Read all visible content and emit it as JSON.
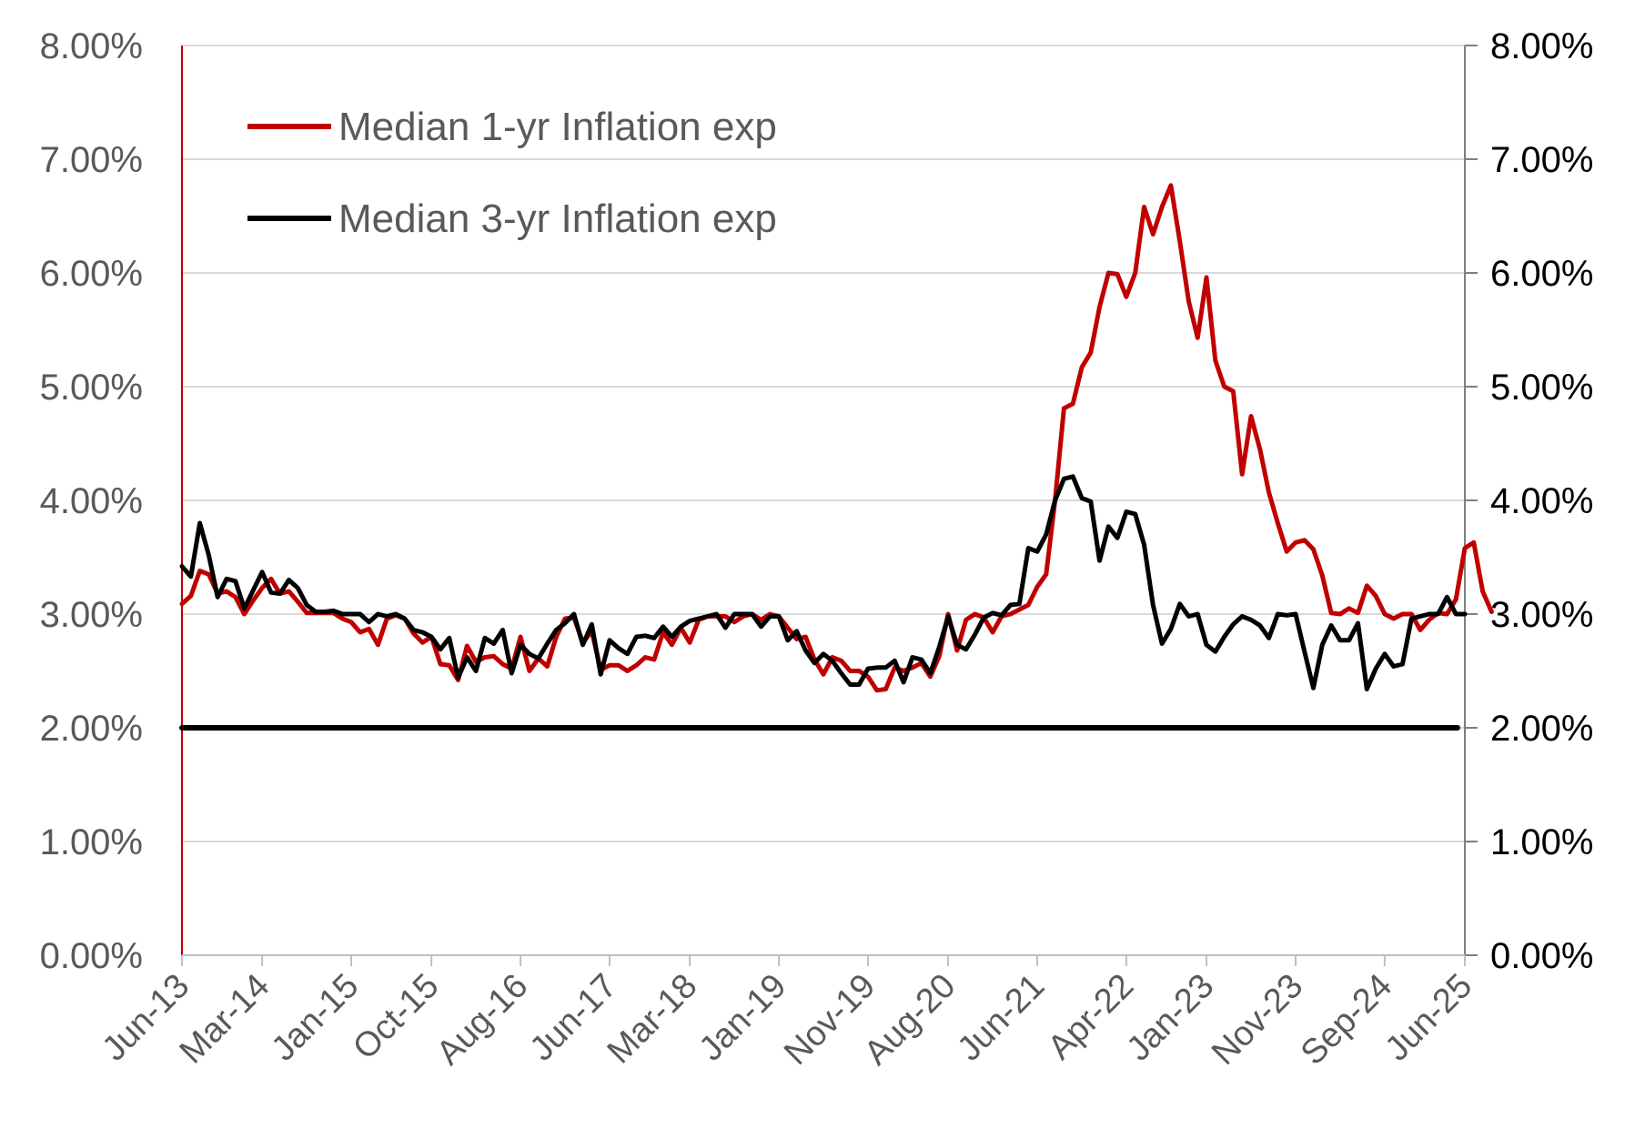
{
  "chart_data": {
    "type": "line",
    "x_tick_labels": [
      "Jun-13",
      "Mar-14",
      "Jan-15",
      "Oct-15",
      "Aug-16",
      "Jun-17",
      "Mar-18",
      "Jan-19",
      "Nov-19",
      "Aug-20",
      "Jun-21",
      "Apr-22",
      "Jan-23",
      "Nov-23",
      "Sep-24",
      "Jun-25"
    ],
    "x_tick_month_index": [
      0,
      9,
      19,
      28,
      38,
      48,
      57,
      67,
      77,
      86,
      96,
      106,
      115,
      125,
      135,
      144
    ],
    "y_ticks": [
      0,
      1,
      2,
      3,
      4,
      5,
      6,
      7,
      8
    ],
    "y_tick_labels_left": [
      "0.00%",
      "1.00%",
      "2.00%",
      "3.00%",
      "4.00%",
      "5.00%",
      "6.00%",
      "7.00%",
      "8.00%"
    ],
    "y_tick_labels_right": [
      "0.00%",
      "1.00%",
      "2.00%",
      "3.00%",
      "4.00%",
      "5.00%",
      "6.00%",
      "7.00%",
      "8.00%"
    ],
    "ylim_left": [
      0,
      8
    ],
    "ylim_right": [
      0,
      8
    ],
    "y_unit": "%",
    "grid": "horizontal",
    "legend_position": "top-left",
    "series": [
      {
        "name": "Median 1-yr Inflation exp",
        "color": "#c00000",
        "values": [
          3.09,
          3.16,
          3.38,
          3.35,
          3.18,
          3.2,
          3.15,
          3.0,
          3.12,
          3.23,
          3.31,
          3.18,
          3.2,
          3.11,
          3.01,
          3.01,
          3.01,
          3.01,
          2.96,
          2.93,
          2.84,
          2.87,
          2.73,
          2.96,
          2.99,
          2.96,
          2.83,
          2.75,
          2.8,
          2.56,
          2.55,
          2.42,
          2.72,
          2.58,
          2.62,
          2.63,
          2.56,
          2.52,
          2.8,
          2.5,
          2.61,
          2.54,
          2.8,
          2.96,
          2.97,
          2.75,
          2.85,
          2.51,
          2.55,
          2.55,
          2.5,
          2.55,
          2.62,
          2.6,
          2.84,
          2.73,
          2.88,
          2.75,
          2.95,
          2.98,
          2.98,
          2.98,
          2.93,
          2.98,
          3.0,
          2.95,
          3.0,
          2.98,
          2.88,
          2.78,
          2.8,
          2.6,
          2.47,
          2.62,
          2.59,
          2.5,
          2.5,
          2.45,
          2.33,
          2.34,
          2.53,
          2.5,
          2.53,
          2.57,
          2.45,
          2.63,
          3.0,
          2.68,
          2.95,
          3.0,
          2.97,
          2.84,
          2.98,
          3.0,
          3.04,
          3.08,
          3.24,
          3.35,
          4.0,
          4.81,
          4.85,
          5.17,
          5.3,
          5.7,
          6.0,
          5.99,
          5.79,
          6.0,
          6.58,
          6.34,
          6.58,
          6.77,
          6.28,
          5.75,
          5.43,
          5.96,
          5.23,
          5.0,
          4.96,
          4.23,
          4.74,
          4.45,
          4.07,
          3.8,
          3.55,
          3.63,
          3.65,
          3.57,
          3.34,
          3.01,
          3.0,
          3.05,
          3.01,
          3.25,
          3.16,
          3.0,
          2.96,
          3.0,
          3.0,
          2.86,
          2.95,
          3.01,
          3.0,
          3.13,
          3.58,
          3.63,
          3.2,
          3.02
        ]
      },
      {
        "name": "Median 3-yr Inflation exp",
        "color": "#000000",
        "values": [
          3.42,
          3.33,
          3.8,
          3.52,
          3.15,
          3.31,
          3.29,
          3.05,
          3.21,
          3.37,
          3.19,
          3.18,
          3.3,
          3.23,
          3.08,
          3.02,
          3.02,
          3.03,
          3.0,
          3.0,
          3.0,
          2.93,
          3.0,
          2.98,
          3.0,
          2.96,
          2.86,
          2.84,
          2.8,
          2.69,
          2.79,
          2.44,
          2.62,
          2.5,
          2.79,
          2.74,
          2.86,
          2.48,
          2.73,
          2.65,
          2.61,
          2.74,
          2.86,
          2.92,
          3.0,
          2.73,
          2.91,
          2.47,
          2.77,
          2.7,
          2.65,
          2.8,
          2.81,
          2.79,
          2.89,
          2.8,
          2.89,
          2.94,
          2.96,
          2.98,
          3.0,
          2.88,
          3.0,
          3.0,
          3.0,
          2.89,
          2.98,
          2.98,
          2.77,
          2.85,
          2.68,
          2.57,
          2.65,
          2.59,
          2.48,
          2.38,
          2.38,
          2.52,
          2.53,
          2.53,
          2.59,
          2.4,
          2.62,
          2.6,
          2.48,
          2.71,
          2.98,
          2.73,
          2.69,
          2.82,
          2.97,
          3.01,
          2.99,
          3.08,
          3.09,
          3.58,
          3.55,
          3.7,
          4.0,
          4.19,
          4.21,
          4.02,
          3.99,
          3.47,
          3.77,
          3.67,
          3.9,
          3.88,
          3.61,
          3.08,
          2.74,
          2.87,
          3.09,
          2.98,
          3.0,
          2.73,
          2.67,
          2.8,
          2.91,
          2.98,
          2.95,
          2.9,
          2.79,
          3.0,
          2.99,
          3.0,
          2.67,
          2.35,
          2.73,
          2.9,
          2.77,
          2.77,
          2.92,
          2.34,
          2.52,
          2.65,
          2.54,
          2.56,
          2.96,
          2.98,
          3.0,
          3.0,
          3.15,
          3.0,
          3.0
        ]
      },
      {
        "name": "",
        "color": "#000000",
        "values": [
          2.0,
          2.0
        ]
      }
    ]
  }
}
